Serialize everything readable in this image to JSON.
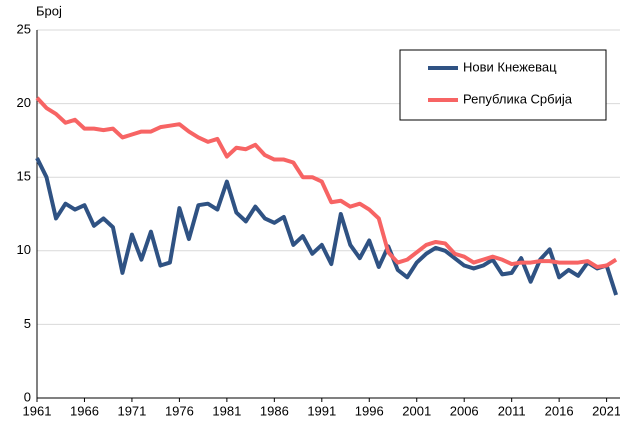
{
  "chart_data": {
    "type": "line",
    "y_label": "Број",
    "x": [
      1961,
      1962,
      1963,
      1964,
      1965,
      1966,
      1967,
      1968,
      1969,
      1970,
      1971,
      1972,
      1973,
      1974,
      1975,
      1976,
      1977,
      1978,
      1979,
      1980,
      1981,
      1982,
      1983,
      1984,
      1985,
      1986,
      1987,
      1988,
      1989,
      1990,
      1991,
      1992,
      1993,
      1994,
      1995,
      1996,
      1997,
      1998,
      1999,
      2000,
      2001,
      2002,
      2003,
      2004,
      2005,
      2006,
      2007,
      2008,
      2009,
      2010,
      2011,
      2012,
      2013,
      2014,
      2015,
      2016,
      2017,
      2018,
      2019,
      2020,
      2021,
      2022
    ],
    "series": [
      {
        "name": "Нови Кнежевац",
        "color": "#2f5283",
        "values": [
          16.3,
          15.0,
          12.2,
          13.2,
          12.8,
          13.1,
          11.7,
          12.2,
          11.6,
          8.5,
          11.1,
          9.4,
          11.3,
          9.0,
          9.2,
          12.9,
          10.8,
          13.1,
          13.2,
          12.8,
          14.7,
          12.6,
          12.0,
          13.0,
          12.2,
          11.9,
          12.3,
          10.4,
          11.0,
          9.8,
          10.4,
          9.1,
          12.5,
          10.4,
          9.5,
          10.7,
          8.9,
          10.3,
          8.7,
          8.2,
          9.2,
          9.8,
          10.2,
          10.0,
          9.5,
          9.0,
          8.8,
          9.0,
          9.4,
          8.4,
          8.5,
          9.5,
          7.9,
          9.4,
          10.1,
          8.2,
          8.7,
          8.3,
          9.2,
          8.8,
          9.0,
          7.0
        ]
      },
      {
        "name": "Република Србија",
        "color": "#f76464",
        "values": [
          20.4,
          19.7,
          19.3,
          18.7,
          18.9,
          18.3,
          18.3,
          18.2,
          18.3,
          17.7,
          17.9,
          18.1,
          18.1,
          18.4,
          18.5,
          18.6,
          18.1,
          17.7,
          17.4,
          17.6,
          16.4,
          17.0,
          16.9,
          17.2,
          16.5,
          16.2,
          16.2,
          16.0,
          15.0,
          15.0,
          14.7,
          13.3,
          13.4,
          13.0,
          13.2,
          12.8,
          12.2,
          9.9,
          9.2,
          9.4,
          9.9,
          10.4,
          10.6,
          10.5,
          9.8,
          9.6,
          9.2,
          9.4,
          9.6,
          9.4,
          9.1,
          9.2,
          9.2,
          9.3,
          9.3,
          9.2,
          9.2,
          9.2,
          9.3,
          8.9,
          9.0,
          9.4
        ]
      }
    ],
    "xlim": [
      1961,
      2022.2
    ],
    "xticks": [
      1961,
      1966,
      1971,
      1976,
      1981,
      1986,
      1991,
      1996,
      2001,
      2006,
      2011,
      2016,
      2021
    ],
    "ylim": [
      0,
      25
    ],
    "yticks": [
      0,
      5,
      10,
      15,
      20,
      25
    ],
    "grid": true
  }
}
